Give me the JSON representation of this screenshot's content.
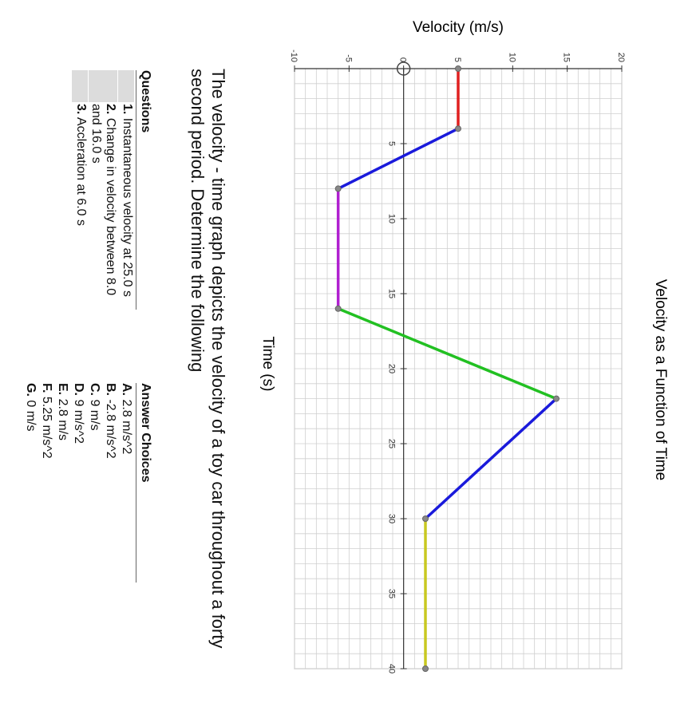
{
  "chart_data": {
    "type": "line",
    "title": "Velocity as a Function of Time",
    "xlabel": "Time (s)",
    "ylabel": "Velocity (m/s)",
    "xlim": [
      0,
      40
    ],
    "ylim": [
      -10,
      20
    ],
    "x_ticks": [
      "5",
      "10",
      "15",
      "20",
      "25",
      "30",
      "35",
      "40"
    ],
    "y_ticks": [
      "-10",
      "-5",
      "0",
      "5",
      "10",
      "15",
      "20"
    ],
    "grid": true,
    "segments": [
      {
        "color": "#e02020",
        "points": [
          [
            0,
            5
          ],
          [
            4,
            5
          ]
        ]
      },
      {
        "color": "#1a1adb",
        "points": [
          [
            4,
            5
          ],
          [
            8,
            -6
          ]
        ]
      },
      {
        "color": "#b020d0",
        "points": [
          [
            8,
            -6
          ],
          [
            16,
            -6
          ]
        ]
      },
      {
        "color": "#22c022",
        "points": [
          [
            16,
            -6
          ],
          [
            22,
            14
          ]
        ]
      },
      {
        "color": "#1a1adb",
        "points": [
          [
            22,
            14
          ],
          [
            30,
            2
          ]
        ]
      },
      {
        "color": "#c8c820",
        "points": [
          [
            30,
            2
          ],
          [
            40,
            2
          ]
        ]
      }
    ]
  },
  "description": "The velocity - time graph depicts the velocity of a toy car throughout a forty second period. Determine the following",
  "questions": {
    "heading": "Questions",
    "items": [
      {
        "num": "1.",
        "text": "Instantaneous velocity at 25.0 s"
      },
      {
        "num": "2.",
        "text": "Change in velocity between 8.0 and 16.0 s"
      },
      {
        "num": "3.",
        "text": "Accleration at 6.0 s"
      }
    ]
  },
  "answers": {
    "heading": "Answer Choices",
    "items": [
      {
        "letter": "A.",
        "text": "2.8 m/s^2"
      },
      {
        "letter": "B.",
        "text": "-2.8 m/s^2"
      },
      {
        "letter": "C.",
        "text": "9 m/s"
      },
      {
        "letter": "D.",
        "text": "9 m/s^2"
      },
      {
        "letter": "E.",
        "text": "2.8 m/s"
      },
      {
        "letter": "F.",
        "text": "5.25 m/s^2"
      },
      {
        "letter": "G.",
        "text": "0 m/s"
      }
    ]
  }
}
